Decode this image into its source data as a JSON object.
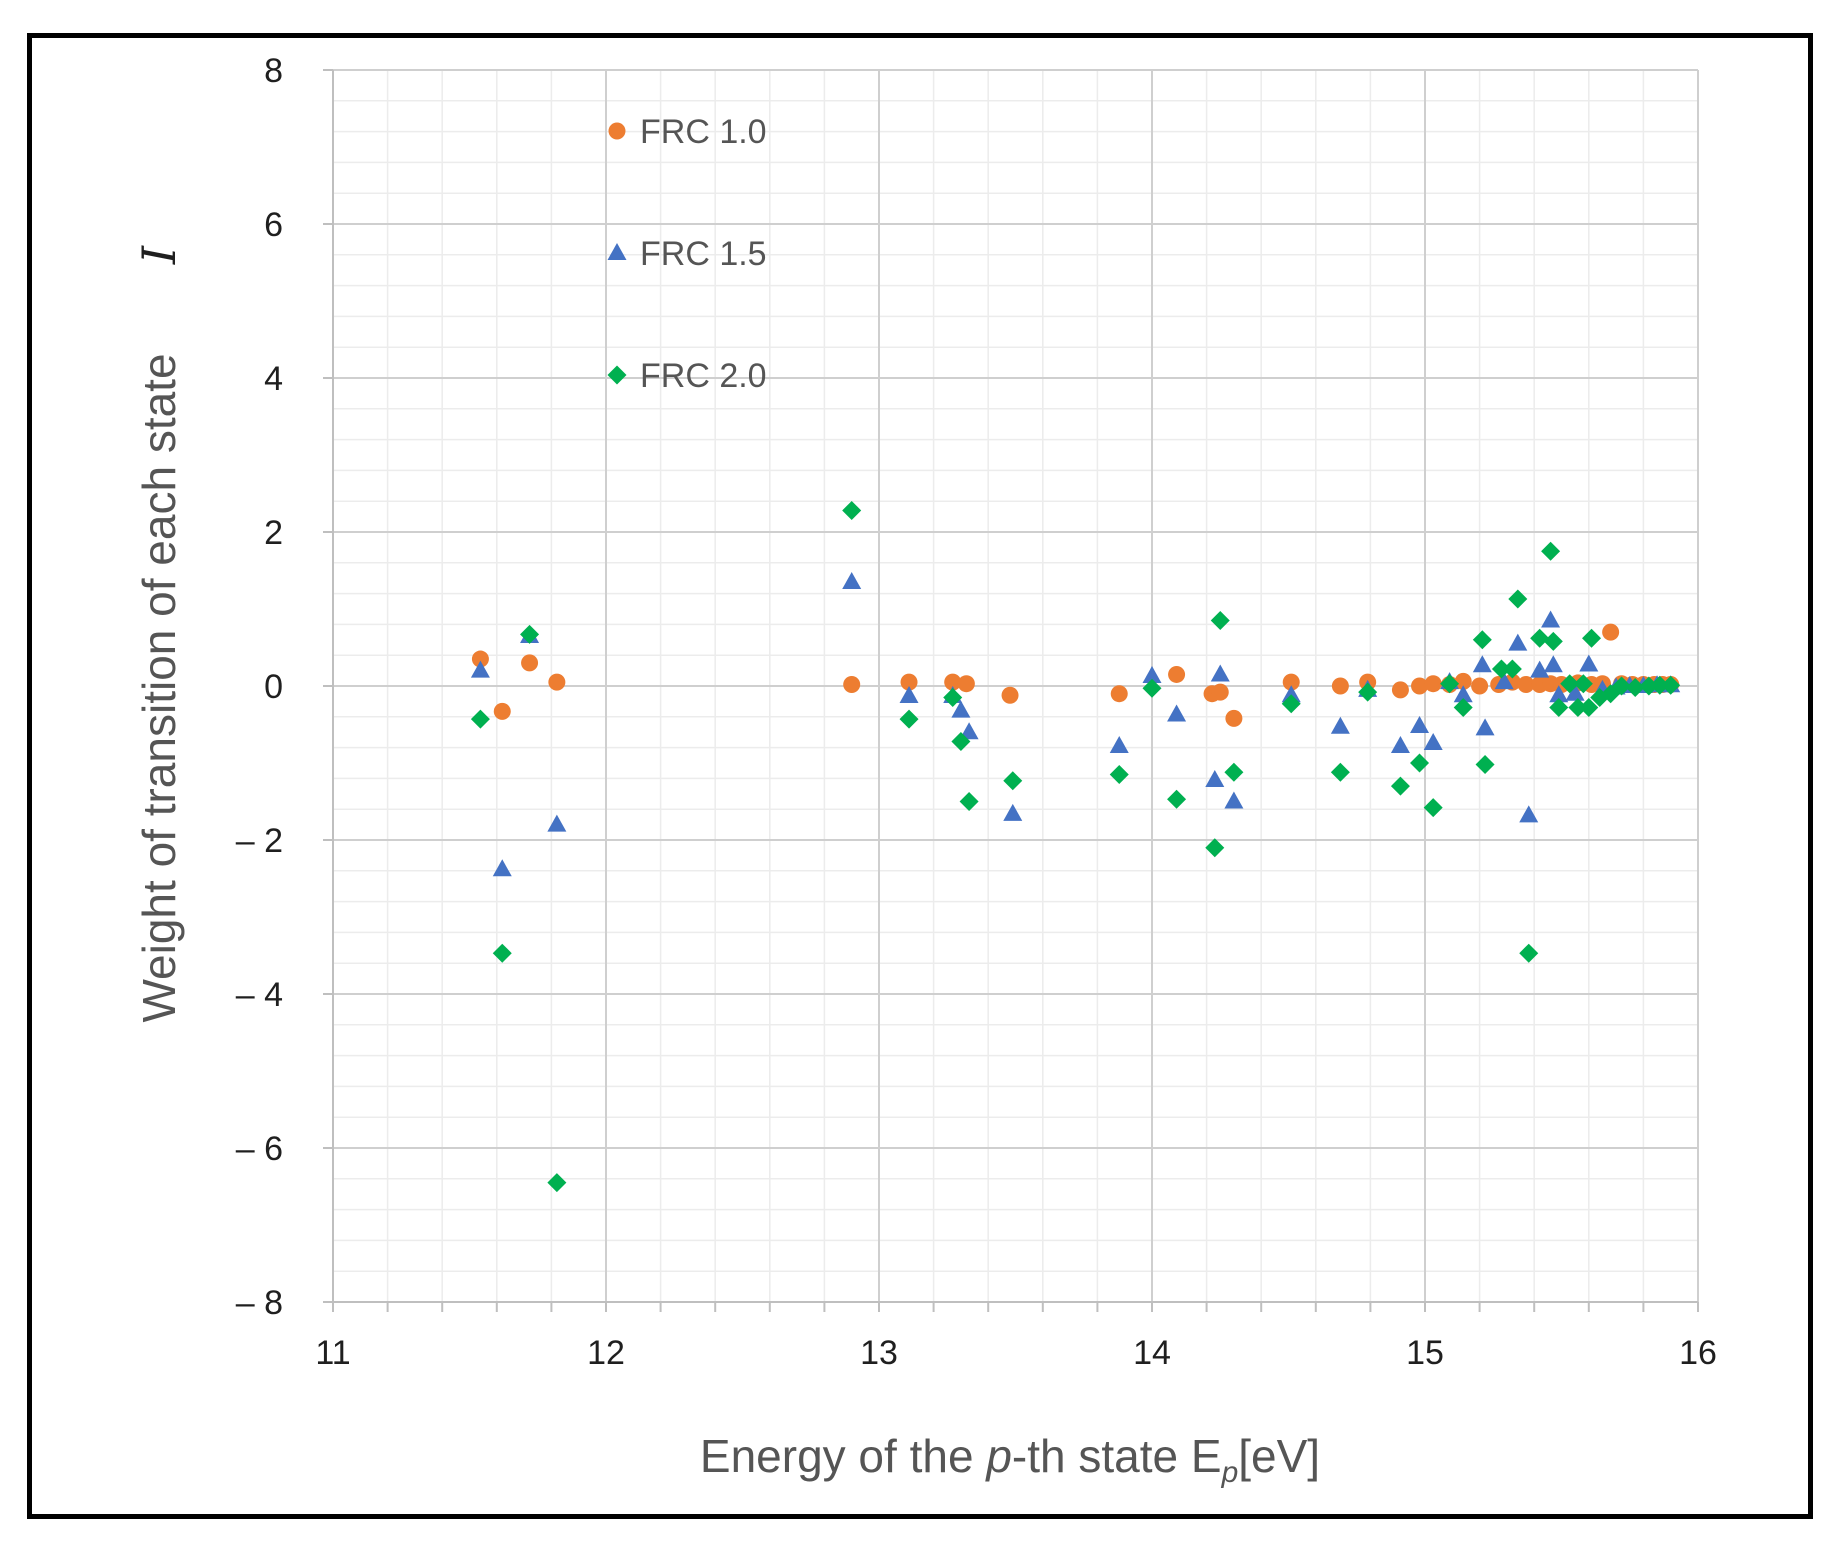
{
  "chart_data": {
    "type": "scatter",
    "title": "",
    "xlabel_parts": [
      "Energy of the ",
      "p",
      "-th state E",
      "p",
      "[eV]"
    ],
    "ylabel": "Weight of transition of each state",
    "y_marker": "I",
    "xlim": [
      11,
      16
    ],
    "ylim": [
      -8,
      8
    ],
    "x_ticks": [
      "11",
      "12",
      "13",
      "14",
      "15",
      "16"
    ],
    "y_ticks": [
      "8",
      "6",
      "4",
      "2",
      "0",
      "– 2",
      "– 4",
      "– 6",
      "– 8"
    ],
    "x_tick_values": [
      11,
      12,
      13,
      14,
      15,
      16
    ],
    "y_tick_values": [
      8,
      6,
      4,
      2,
      0,
      -2,
      -4,
      -6,
      -8
    ],
    "grid": true,
    "legend_position": "top-left",
    "series": [
      {
        "name": "FRC 1.0",
        "marker": "circle",
        "color": "#ED7D31",
        "points": [
          [
            11.54,
            0.35
          ],
          [
            11.62,
            -0.33
          ],
          [
            11.72,
            0.3
          ],
          [
            11.82,
            0.05
          ],
          [
            12.9,
            0.02
          ],
          [
            13.11,
            0.05
          ],
          [
            13.27,
            0.05
          ],
          [
            13.32,
            0.03
          ],
          [
            13.48,
            -0.12
          ],
          [
            13.88,
            -0.1
          ],
          [
            14.09,
            0.15
          ],
          [
            14.22,
            -0.1
          ],
          [
            14.25,
            -0.08
          ],
          [
            14.3,
            -0.42
          ],
          [
            14.51,
            0.05
          ],
          [
            14.69,
            0.0
          ],
          [
            14.79,
            0.05
          ],
          [
            14.91,
            -0.05
          ],
          [
            14.98,
            0.0
          ],
          [
            15.03,
            0.03
          ],
          [
            15.09,
            0.02
          ],
          [
            15.14,
            0.06
          ],
          [
            15.2,
            0.0
          ],
          [
            15.27,
            0.02
          ],
          [
            15.32,
            0.05
          ],
          [
            15.37,
            0.02
          ],
          [
            15.42,
            0.02
          ],
          [
            15.46,
            0.03
          ],
          [
            15.5,
            0.02
          ],
          [
            15.56,
            0.04
          ],
          [
            15.61,
            0.02
          ],
          [
            15.65,
            0.03
          ],
          [
            15.68,
            0.7
          ],
          [
            15.72,
            0.03
          ],
          [
            15.76,
            0.02
          ],
          [
            15.8,
            0.02
          ],
          [
            15.84,
            0.02
          ],
          [
            15.87,
            0.02
          ],
          [
            15.9,
            0.02
          ]
        ]
      },
      {
        "name": "FRC 1.5",
        "marker": "triangle",
        "color": "#4472C4",
        "points": [
          [
            11.54,
            0.2
          ],
          [
            11.62,
            -2.38
          ],
          [
            11.72,
            0.65
          ],
          [
            11.82,
            -1.8
          ],
          [
            12.9,
            1.35
          ],
          [
            13.11,
            -0.13
          ],
          [
            13.27,
            -0.13
          ],
          [
            13.3,
            -0.32
          ],
          [
            13.33,
            -0.6
          ],
          [
            13.49,
            -1.66
          ],
          [
            13.88,
            -0.78
          ],
          [
            14.0,
            0.13
          ],
          [
            14.09,
            -0.37
          ],
          [
            14.23,
            -1.22
          ],
          [
            14.25,
            0.15
          ],
          [
            14.3,
            -1.5
          ],
          [
            14.51,
            -0.12
          ],
          [
            14.69,
            -0.53
          ],
          [
            14.79,
            -0.05
          ],
          [
            14.91,
            -0.78
          ],
          [
            14.98,
            -0.52
          ],
          [
            15.03,
            -0.74
          ],
          [
            15.09,
            0.05
          ],
          [
            15.14,
            -0.12
          ],
          [
            15.21,
            0.27
          ],
          [
            15.22,
            -0.55
          ],
          [
            15.29,
            0.05
          ],
          [
            15.34,
            0.55
          ],
          [
            15.38,
            -1.68
          ],
          [
            15.42,
            0.2
          ],
          [
            15.46,
            0.85
          ],
          [
            15.47,
            0.27
          ],
          [
            15.49,
            -0.12
          ],
          [
            15.55,
            -0.1
          ],
          [
            15.6,
            0.28
          ],
          [
            15.65,
            -0.05
          ],
          [
            15.7,
            -0.02
          ],
          [
            15.75,
            0.0
          ],
          [
            15.8,
            0.0
          ],
          [
            15.85,
            0.01
          ],
          [
            15.9,
            0.01
          ]
        ]
      },
      {
        "name": "FRC 2.0",
        "marker": "diamond",
        "color": "#00B050",
        "points": [
          [
            11.54,
            -0.43
          ],
          [
            11.62,
            -3.47
          ],
          [
            11.72,
            0.67
          ],
          [
            11.82,
            -6.45
          ],
          [
            12.9,
            2.28
          ],
          [
            13.11,
            -0.43
          ],
          [
            13.27,
            -0.15
          ],
          [
            13.3,
            -0.72
          ],
          [
            13.33,
            -1.5
          ],
          [
            13.49,
            -1.23
          ],
          [
            13.88,
            -1.15
          ],
          [
            14.0,
            -0.03
          ],
          [
            14.09,
            -1.47
          ],
          [
            14.23,
            -2.1
          ],
          [
            14.25,
            0.85
          ],
          [
            14.3,
            -1.12
          ],
          [
            14.51,
            -0.23
          ],
          [
            14.69,
            -1.12
          ],
          [
            14.79,
            -0.08
          ],
          [
            14.91,
            -1.3
          ],
          [
            14.98,
            -1.0
          ],
          [
            15.03,
            -1.58
          ],
          [
            15.09,
            0.03
          ],
          [
            15.14,
            -0.28
          ],
          [
            15.21,
            0.6
          ],
          [
            15.22,
            -1.02
          ],
          [
            15.28,
            0.22
          ],
          [
            15.32,
            0.22
          ],
          [
            15.34,
            1.13
          ],
          [
            15.38,
            -3.47
          ],
          [
            15.42,
            0.62
          ],
          [
            15.46,
            1.75
          ],
          [
            15.47,
            0.58
          ],
          [
            15.49,
            -0.28
          ],
          [
            15.53,
            0.03
          ],
          [
            15.56,
            -0.28
          ],
          [
            15.58,
            0.03
          ],
          [
            15.6,
            -0.28
          ],
          [
            15.61,
            0.62
          ],
          [
            15.64,
            -0.15
          ],
          [
            15.68,
            -0.1
          ],
          [
            15.72,
            0.0
          ],
          [
            15.77,
            -0.02
          ],
          [
            15.82,
            0.0
          ],
          [
            15.86,
            0.01
          ],
          [
            15.9,
            0.01
          ]
        ]
      }
    ]
  }
}
